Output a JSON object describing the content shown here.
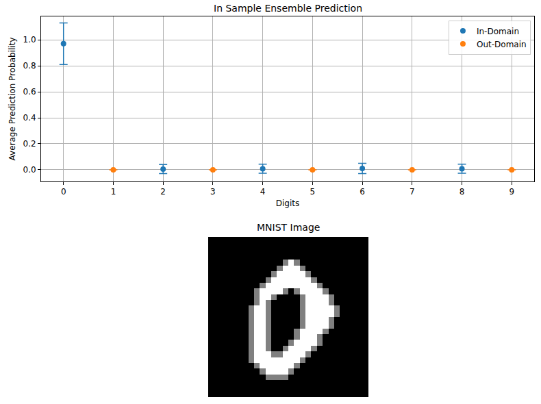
{
  "chart_data": [
    {
      "type": "scatter",
      "title": "In Sample Ensemble Prediction",
      "x_label": "Digits",
      "y_label": "Average Prediction Probability",
      "xlim": [
        -0.45,
        9.45
      ],
      "xticks": [
        0,
        1,
        2,
        3,
        4,
        5,
        6,
        7,
        8,
        9
      ],
      "ylim": [
        -0.09,
        1.18
      ],
      "yticks": [
        {
          "value": 0,
          "label": "0.0"
        },
        0.2,
        0.4,
        0.6,
        0.8,
        {
          "value": 1,
          "label": "1.0"
        }
      ],
      "grid": true,
      "legend": "upper right",
      "marker": "circle",
      "series": [
        {
          "name": "In-Domain",
          "color": "#1f77b4",
          "x": [
            0,
            2,
            4,
            6,
            8
          ],
          "values": [
            0.97,
            0.005,
            0.008,
            0.01,
            0.008
          ],
          "errors": [
            0.16,
            0.035,
            0.035,
            0.04,
            0.035
          ]
        },
        {
          "name": "Out-Domain",
          "color": "#ff7f0e",
          "x": [
            1,
            3,
            5,
            7,
            9
          ],
          "values": [
            0,
            0,
            0,
            0,
            0
          ],
          "errors": [
            0,
            0,
            0,
            0,
            0
          ]
        }
      ]
    },
    {
      "type": "image",
      "title": "MNIST Image",
      "tick_labels": false,
      "zlim": [
        0,
        1
      ],
      "cells": [
        [
          0,
          0,
          0,
          0,
          0,
          0,
          0,
          0,
          0,
          0,
          0,
          0,
          0,
          0,
          0,
          0,
          0,
          0,
          0,
          0,
          0,
          0,
          0,
          0,
          0,
          0,
          0,
          0
        ],
        [
          0,
          0,
          0,
          0,
          0,
          0,
          0,
          0,
          0,
          0,
          0,
          0,
          0,
          0,
          0,
          0,
          0,
          0,
          0,
          0,
          0,
          0,
          0,
          0,
          0,
          0,
          0,
          0
        ],
        [
          0,
          0,
          0,
          0,
          0,
          0,
          0,
          0,
          0,
          0,
          0,
          0,
          0,
          0,
          0,
          0,
          0,
          0,
          0,
          0,
          0,
          0,
          0,
          0,
          0,
          0,
          0,
          0
        ],
        [
          0,
          0,
          0,
          0,
          0,
          0,
          0,
          0,
          0,
          0,
          0,
          0,
          0,
          0,
          0,
          0,
          0,
          0,
          0,
          0,
          0,
          0,
          0,
          0,
          0,
          0,
          0,
          0
        ],
        [
          0,
          0,
          0,
          0,
          0,
          0,
          0,
          0,
          0,
          0,
          0,
          0,
          0,
          0.5,
          1,
          0.5,
          0,
          0,
          0,
          0,
          0,
          0,
          0,
          0,
          0,
          0,
          0,
          0
        ],
        [
          0,
          0,
          0,
          0,
          0,
          0,
          0,
          0,
          0,
          0,
          0,
          0,
          0.5,
          1,
          1,
          1,
          0.5,
          0,
          0,
          0,
          0,
          0,
          0,
          0,
          0,
          0,
          0,
          0
        ],
        [
          0,
          0,
          0,
          0,
          0,
          0,
          0,
          0,
          0,
          0,
          0,
          0.5,
          1,
          1,
          1,
          1,
          1,
          0.5,
          0,
          0,
          0,
          0,
          0,
          0,
          0,
          0,
          0,
          0
        ],
        [
          0,
          0,
          0,
          0,
          0,
          0,
          0,
          0,
          0,
          0,
          0.5,
          1,
          1,
          1,
          1,
          1,
          1,
          1,
          0.5,
          0,
          0,
          0,
          0,
          0,
          0,
          0,
          0,
          0
        ],
        [
          0,
          0,
          0,
          0,
          0,
          0,
          0,
          0,
          0,
          0.5,
          1,
          1,
          1,
          1,
          1,
          1,
          1,
          1,
          1,
          0.5,
          0,
          0,
          0,
          0,
          0,
          0,
          0,
          0
        ],
        [
          0,
          0,
          0,
          0,
          0,
          0,
          0,
          0,
          0.5,
          1,
          1,
          1,
          1,
          0.5,
          0,
          0.5,
          1,
          1,
          1,
          1,
          0.5,
          0,
          0,
          0,
          0,
          0,
          0,
          0
        ],
        [
          0,
          0,
          0,
          0,
          0,
          0,
          0,
          0,
          0.5,
          1,
          1,
          0.5,
          0,
          0,
          0,
          0,
          0.5,
          1,
          1,
          1,
          1,
          0.5,
          0,
          0,
          0,
          0,
          0,
          0
        ],
        [
          0,
          0,
          0,
          0,
          0,
          0,
          0,
          0,
          0.5,
          1,
          0.5,
          0,
          0,
          0,
          0,
          0,
          0.5,
          1,
          1,
          1,
          1,
          0.5,
          0,
          0,
          0,
          0,
          0,
          0
        ],
        [
          0,
          0,
          0,
          0,
          0,
          0,
          0,
          0.5,
          1,
          1,
          0.5,
          0,
          0,
          0,
          0,
          0,
          0.5,
          1,
          1,
          1,
          1,
          1,
          0.5,
          0,
          0,
          0,
          0,
          0
        ],
        [
          0,
          0,
          0,
          0,
          0,
          0,
          0,
          0.5,
          1,
          1,
          0.5,
          0,
          0,
          0,
          0,
          0,
          0.5,
          1,
          1,
          1,
          1,
          1,
          0.5,
          0,
          0,
          0,
          0,
          0
        ],
        [
          0,
          0,
          0,
          0,
          0,
          0,
          0,
          0.5,
          1,
          1,
          0.5,
          0,
          0,
          0,
          0,
          0,
          0.5,
          1,
          1,
          1,
          1,
          0.5,
          0,
          0,
          0,
          0,
          0,
          0
        ],
        [
          0,
          0,
          0,
          0,
          0,
          0,
          0,
          0.5,
          1,
          1,
          0.5,
          0,
          0,
          0,
          0,
          0,
          0.5,
          1,
          1,
          1,
          1,
          0.5,
          0,
          0,
          0,
          0,
          0,
          0
        ],
        [
          0,
          0,
          0,
          0,
          0,
          0,
          0,
          0.5,
          1,
          1,
          0.5,
          0,
          0,
          0,
          0,
          0.5,
          1,
          1,
          1,
          1,
          0.5,
          0,
          0,
          0,
          0,
          0,
          0,
          0
        ],
        [
          0,
          0,
          0,
          0,
          0,
          0,
          0,
          0.5,
          1,
          1,
          0.5,
          0,
          0,
          0,
          0,
          0.5,
          1,
          1,
          1,
          0.5,
          0,
          0,
          0,
          0,
          0,
          0,
          0,
          0
        ],
        [
          0,
          0,
          0,
          0,
          0,
          0,
          0,
          0.5,
          1,
          1,
          0.5,
          0,
          0,
          0,
          0.5,
          1,
          1,
          1,
          1,
          0.5,
          0,
          0,
          0,
          0,
          0,
          0,
          0,
          0
        ],
        [
          0,
          0,
          0,
          0,
          0,
          0,
          0,
          0.5,
          1,
          1,
          0.5,
          0,
          0,
          0.5,
          1,
          1,
          1,
          1,
          0.5,
          0,
          0,
          0,
          0,
          0,
          0,
          0,
          0,
          0
        ],
        [
          0,
          0,
          0,
          0,
          0,
          0,
          0,
          0.5,
          1,
          1,
          1,
          0.5,
          0.5,
          1,
          1,
          1,
          1,
          0.5,
          0,
          0,
          0,
          0,
          0,
          0,
          0,
          0,
          0,
          0
        ],
        [
          0,
          0,
          0,
          0,
          0,
          0,
          0,
          0.5,
          1,
          1,
          1,
          1,
          1,
          1,
          1,
          1,
          0.5,
          0,
          0,
          0,
          0,
          0,
          0,
          0,
          0,
          0,
          0,
          0
        ],
        [
          0,
          0,
          0,
          0,
          0,
          0,
          0,
          0,
          0.5,
          1,
          1,
          1,
          1,
          1,
          1,
          0.5,
          0,
          0,
          0,
          0,
          0,
          0,
          0,
          0,
          0,
          0,
          0,
          0
        ],
        [
          0,
          0,
          0,
          0,
          0,
          0,
          0,
          0,
          0,
          0.5,
          1,
          1,
          1,
          1,
          0.5,
          0,
          0,
          0,
          0,
          0,
          0,
          0,
          0,
          0,
          0,
          0,
          0,
          0
        ],
        [
          0,
          0,
          0,
          0,
          0,
          0,
          0,
          0,
          0,
          0,
          0.5,
          0.5,
          0.5,
          0.5,
          0,
          0,
          0,
          0,
          0,
          0,
          0,
          0,
          0,
          0,
          0,
          0,
          0,
          0
        ],
        [
          0,
          0,
          0,
          0,
          0,
          0,
          0,
          0,
          0,
          0,
          0,
          0,
          0,
          0,
          0,
          0,
          0,
          0,
          0,
          0,
          0,
          0,
          0,
          0,
          0,
          0,
          0,
          0
        ],
        [
          0,
          0,
          0,
          0,
          0,
          0,
          0,
          0,
          0,
          0,
          0,
          0,
          0,
          0,
          0,
          0,
          0,
          0,
          0,
          0,
          0,
          0,
          0,
          0,
          0,
          0,
          0,
          0
        ],
        [
          0,
          0,
          0,
          0,
          0,
          0,
          0,
          0,
          0,
          0,
          0,
          0,
          0,
          0,
          0,
          0,
          0,
          0,
          0,
          0,
          0,
          0,
          0,
          0,
          0,
          0,
          0,
          0
        ]
      ]
    }
  ]
}
